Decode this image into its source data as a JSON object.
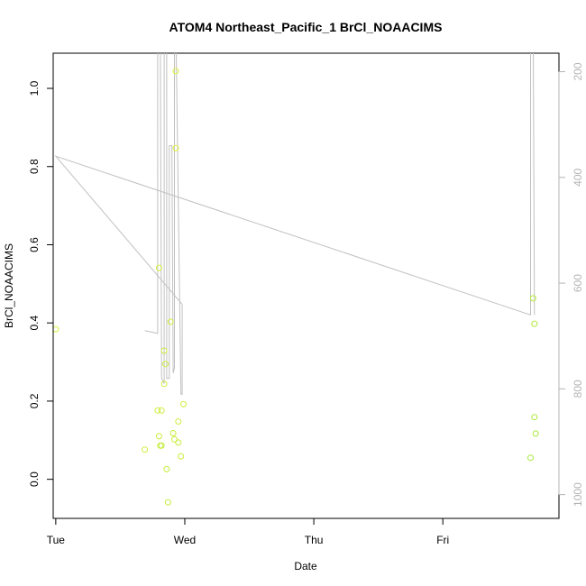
{
  "chart_data": {
    "type": "scatter",
    "title": "ATOM4 Northeast_Pacific_1 BrCl_NOAACIMS",
    "xlabel": "Date",
    "ylabel": "BrCl_NOAACIMS",
    "x_ticks": [
      "Tue",
      "Wed",
      "Thu",
      "Fri"
    ],
    "xlim": [
      -0.02,
      3.9
    ],
    "ylim": [
      -0.1,
      1.09
    ],
    "y_ticks": [
      0.0,
      0.2,
      0.4,
      0.6,
      0.8,
      1.0
    ],
    "y_tick_labels": [
      "0.0",
      "0.2",
      "0.4",
      "0.6",
      "0.8",
      "1.0"
    ],
    "y2_ticks": [
      200,
      400,
      600,
      800,
      1000
    ],
    "y2_tick_labels": [
      "200",
      "400",
      "600",
      "800",
      "1000"
    ],
    "y2lim": [
      1045,
      165
    ],
    "x_unit": "days since Tuesday 00:00",
    "series": [
      {
        "type": "scatter",
        "points": [
          {
            "x": 0.0,
            "y": 0.384,
            "color": "#d9f03c"
          },
          {
            "x": 0.69,
            "y": 0.076,
            "color": "#cfee3a"
          },
          {
            "x": 0.79,
            "y": 0.176,
            "color": "#cdee3b"
          },
          {
            "x": 0.8,
            "y": 0.11,
            "color": "#c9ed3a"
          },
          {
            "x": 0.8,
            "y": 0.541,
            "color": "#d6f03c"
          },
          {
            "x": 0.81,
            "y": 0.086,
            "color": "#c3ec39"
          },
          {
            "x": 0.82,
            "y": 0.176,
            "color": "#cdee3b"
          },
          {
            "x": 0.82,
            "y": 0.086,
            "color": "#c3ec39"
          },
          {
            "x": 0.84,
            "y": 0.244,
            "color": "#cbee3a"
          },
          {
            "x": 0.84,
            "y": 0.329,
            "color": "#cdee3b"
          },
          {
            "x": 0.85,
            "y": 0.295,
            "color": "#cbee3a"
          },
          {
            "x": 0.86,
            "y": 0.026,
            "color": "#c6ed3a"
          },
          {
            "x": 0.87,
            "y": -0.059,
            "color": "#c4ec39"
          },
          {
            "x": 0.89,
            "y": 0.403,
            "color": "#d2ef3b"
          },
          {
            "x": 0.91,
            "y": 0.118,
            "color": "#c6ed3a"
          },
          {
            "x": 0.92,
            "y": 0.102,
            "color": "#c9ed3a"
          },
          {
            "x": 0.93,
            "y": 0.847,
            "color": "#dcf13e"
          },
          {
            "x": 0.93,
            "y": 1.044,
            "color": "#dff13f"
          },
          {
            "x": 0.95,
            "y": 0.148,
            "color": "#cdee3b"
          },
          {
            "x": 0.95,
            "y": 0.094,
            "color": "#c6ed3a"
          },
          {
            "x": 0.97,
            "y": 0.059,
            "color": "#cbee3a"
          },
          {
            "x": 0.99,
            "y": 0.192,
            "color": "#cfee3a"
          },
          {
            "x": 3.68,
            "y": 0.055,
            "color": "#a8e83a"
          },
          {
            "x": 3.7,
            "y": 0.463,
            "color": "#b3ea39"
          },
          {
            "x": 3.71,
            "y": 0.159,
            "color": "#aee93a"
          },
          {
            "x": 3.71,
            "y": 0.398,
            "color": "#b3ea39"
          },
          {
            "x": 3.72,
            "y": 0.117,
            "color": "#a8e83a"
          }
        ]
      },
      {
        "type": "line",
        "axis": "right",
        "color": "#c0c0c0",
        "points": [
          {
            "x": 0.69,
            "y": 690
          },
          {
            "x": 0.79,
            "y": 695
          },
          {
            "x": 0.79,
            "y": 100
          },
          {
            "x": 0.81,
            "y": 100
          },
          {
            "x": 0.82,
            "y": 780
          },
          {
            "x": 0.84,
            "y": 790
          },
          {
            "x": 0.84,
            "y": 100
          },
          {
            "x": 0.86,
            "y": 100
          },
          {
            "x": 0.86,
            "y": 780
          },
          {
            "x": 0.88,
            "y": 780
          },
          {
            "x": 0.88,
            "y": 340
          },
          {
            "x": 0.9,
            "y": 340
          },
          {
            "x": 0.91,
            "y": 770
          },
          {
            "x": 0.92,
            "y": 760
          },
          {
            "x": 0.92,
            "y": 100
          },
          {
            "x": 0.93,
            "y": 100
          },
          {
            "x": 0.97,
            "y": 810
          },
          {
            "x": 0.98,
            "y": 810
          },
          {
            "x": 0.98,
            "y": 640
          },
          {
            "x": 0.0,
            "y": 360
          },
          {
            "x": 3.68,
            "y": 660
          },
          {
            "x": 3.68,
            "y": 100
          },
          {
            "x": 3.7,
            "y": 100
          },
          {
            "x": 3.71,
            "y": 660
          }
        ]
      }
    ]
  }
}
